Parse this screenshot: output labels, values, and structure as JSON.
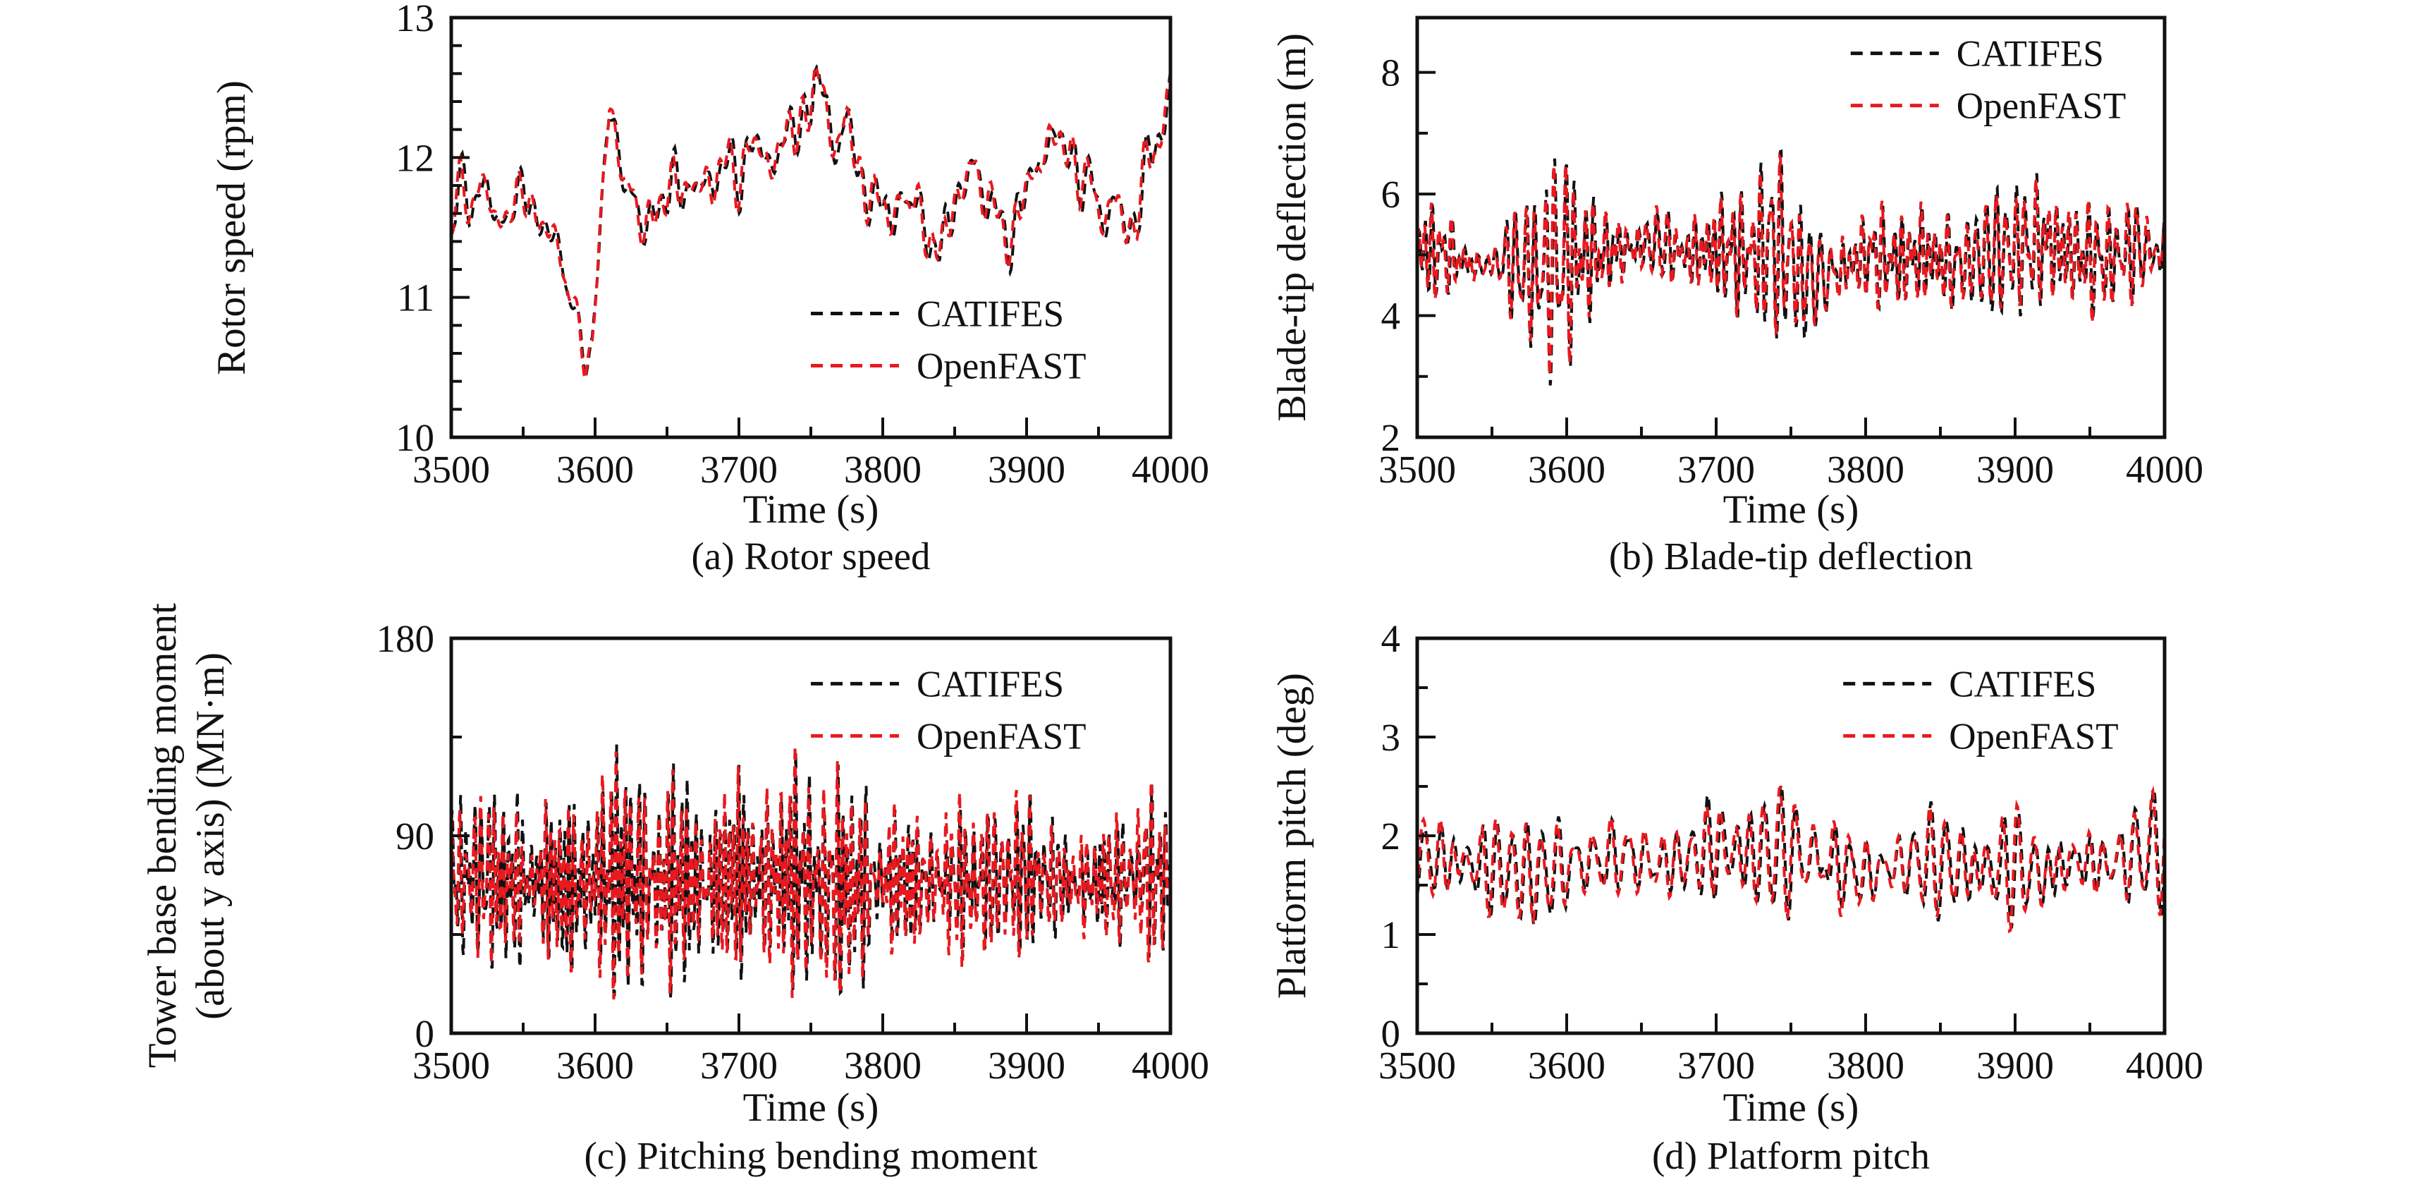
{
  "figure": {
    "background": "#ffffff",
    "text_color": "#111111",
    "axis_color": "#111111",
    "accent_red": "#e8191f",
    "accent_black": "#111111"
  },
  "chart_data": [
    {
      "id": "a",
      "type": "line",
      "caption": "(a) Rotor speed",
      "xlabel": "Time (s)",
      "ylabel_lines": [
        "Rotor speed (rpm)"
      ],
      "xlim": [
        3500,
        4000
      ],
      "ylim": [
        10,
        13
      ],
      "x_major_ticks": [
        3500,
        3600,
        3700,
        3800,
        3900,
        4000
      ],
      "x_minor_step": 50,
      "y_major_ticks": [
        10,
        11,
        12,
        13
      ],
      "y_minor_step": 0.2,
      "grid": false,
      "legend": {
        "position": "bottom-right",
        "x": 0.5,
        "y": 0.705,
        "items": [
          {
            "label": "CATIFES",
            "color": "#111111",
            "dash": "dashed"
          },
          {
            "label": "OpenFAST",
            "color": "#e8191f",
            "dash": "dashed"
          }
        ]
      },
      "signal": {
        "units": "rpm",
        "trend": [
          [
            3500,
            11.5
          ],
          [
            3510,
            11.8
          ],
          [
            3520,
            11.75
          ],
          [
            3530,
            11.6
          ],
          [
            3540,
            11.6
          ],
          [
            3550,
            11.75
          ],
          [
            3560,
            11.6
          ],
          [
            3570,
            11.4
          ],
          [
            3580,
            11.2
          ],
          [
            3588,
            10.8
          ],
          [
            3593,
            10.45
          ],
          [
            3598,
            10.7
          ],
          [
            3604,
            11.6
          ],
          [
            3610,
            12.35
          ],
          [
            3615,
            12.1
          ],
          [
            3625,
            11.7
          ],
          [
            3635,
            11.5
          ],
          [
            3645,
            11.65
          ],
          [
            3655,
            11.85
          ],
          [
            3665,
            11.75
          ],
          [
            3675,
            11.8
          ],
          [
            3685,
            11.9
          ],
          [
            3695,
            11.9
          ],
          [
            3705,
            12.0
          ],
          [
            3715,
            12.05
          ],
          [
            3725,
            12.0
          ],
          [
            3735,
            12.15
          ],
          [
            3745,
            12.3
          ],
          [
            3753,
            12.55
          ],
          [
            3760,
            12.3
          ],
          [
            3770,
            12.2
          ],
          [
            3780,
            12.05
          ],
          [
            3790,
            11.75
          ],
          [
            3800,
            11.6
          ],
          [
            3810,
            11.65
          ],
          [
            3820,
            11.7
          ],
          [
            3830,
            11.5
          ],
          [
            3840,
            11.3
          ],
          [
            3850,
            11.7
          ],
          [
            3860,
            11.9
          ],
          [
            3870,
            11.8
          ],
          [
            3880,
            11.55
          ],
          [
            3890,
            11.4
          ],
          [
            3900,
            11.8
          ],
          [
            3910,
            12.0
          ],
          [
            3920,
            12.15
          ],
          [
            3930,
            12.05
          ],
          [
            3940,
            11.8
          ],
          [
            3950,
            11.7
          ],
          [
            3960,
            11.6
          ],
          [
            3970,
            11.5
          ],
          [
            3980,
            11.75
          ],
          [
            3990,
            12.1
          ],
          [
            4000,
            12.5
          ]
        ],
        "amplitude": [
          [
            3500,
            0.24
          ],
          [
            3580,
            0.18
          ],
          [
            3592,
            0.1
          ],
          [
            3604,
            0.14
          ],
          [
            3620,
            0.22
          ],
          [
            3650,
            0.25
          ],
          [
            3750,
            0.27
          ],
          [
            3800,
            0.24
          ],
          [
            3900,
            0.25
          ],
          [
            4000,
            0.26
          ]
        ],
        "period_range": [
          6,
          26
        ],
        "components": 6,
        "dt": 0.7,
        "seed": 41,
        "seed2": 97,
        "shift": 1.2
      }
    },
    {
      "id": "b",
      "type": "line",
      "caption": "(b) Blade-tip deflection",
      "xlabel": "Time (s)",
      "ylabel_lines": [
        "Blade-tip deflection (m)"
      ],
      "xlim": [
        3500,
        4000
      ],
      "ylim": [
        2,
        8.9
      ],
      "x_major_ticks": [
        3500,
        3600,
        3700,
        3800,
        3900,
        4000
      ],
      "x_minor_step": 50,
      "y_major_ticks": [
        2,
        4,
        6,
        8
      ],
      "y_minor_step": 1,
      "grid": false,
      "legend": {
        "position": "top-right",
        "x": 0.58,
        "y": 0.085,
        "items": [
          {
            "label": "CATIFES",
            "color": "#111111",
            "dash": "dashed"
          },
          {
            "label": "OpenFAST",
            "color": "#e8191f",
            "dash": "dashed"
          }
        ]
      },
      "signal": {
        "units": "m",
        "trend": [
          [
            3500,
            5.1
          ],
          [
            3520,
            5.0
          ],
          [
            3540,
            4.8
          ],
          [
            3560,
            4.9
          ],
          [
            3580,
            4.7
          ],
          [
            3600,
            4.9
          ],
          [
            3620,
            5.0
          ],
          [
            3640,
            5.1
          ],
          [
            3660,
            5.2
          ],
          [
            3680,
            5.0
          ],
          [
            3700,
            5.1
          ],
          [
            3720,
            5.0
          ],
          [
            3740,
            5.2
          ],
          [
            3760,
            4.6
          ],
          [
            3780,
            4.7
          ],
          [
            3800,
            5.0
          ],
          [
            3820,
            4.9
          ],
          [
            3840,
            5.0
          ],
          [
            3860,
            4.8
          ],
          [
            3880,
            5.0
          ],
          [
            3900,
            5.1
          ],
          [
            3920,
            5.2
          ],
          [
            3940,
            5.0
          ],
          [
            3960,
            4.9
          ],
          [
            3980,
            5.1
          ],
          [
            4000,
            5.0
          ]
        ],
        "amplitude": [
          [
            3500,
            1.1
          ],
          [
            3520,
            0.9
          ],
          [
            3540,
            0.8
          ],
          [
            3560,
            1.0
          ],
          [
            3580,
            1.2
          ],
          [
            3600,
            1.5
          ],
          [
            3620,
            1.0
          ],
          [
            3640,
            0.9
          ],
          [
            3660,
            1.0
          ],
          [
            3680,
            0.9
          ],
          [
            3700,
            1.1
          ],
          [
            3720,
            0.9
          ],
          [
            3740,
            1.3
          ],
          [
            3760,
            1.5
          ],
          [
            3780,
            1.2
          ],
          [
            3800,
            0.9
          ],
          [
            3820,
            0.8
          ],
          [
            3840,
            1.0
          ],
          [
            3860,
            1.1
          ],
          [
            3880,
            1.0
          ],
          [
            3900,
            1.2
          ],
          [
            3920,
            1.1
          ],
          [
            3940,
            1.0
          ],
          [
            3960,
            0.9
          ],
          [
            3980,
            1.2
          ],
          [
            4000,
            1.4
          ]
        ],
        "period_range": [
          3.2,
          9
        ],
        "components": 6,
        "dt": 0.5,
        "seed": 12,
        "seed2": 55,
        "shift": 0.5
      }
    },
    {
      "id": "c",
      "type": "line",
      "caption": "(c) Pitching bending moment",
      "xlabel": "Time (s)",
      "ylabel_lines": [
        "Tower base bending moment",
        "(about y axis) (MN·m)"
      ],
      "xlim": [
        3500,
        4000
      ],
      "ylim": [
        0,
        180
      ],
      "x_major_ticks": [
        3500,
        3600,
        3700,
        3800,
        3900,
        4000
      ],
      "x_minor_step": 50,
      "y_major_ticks": [
        0,
        90,
        180
      ],
      "y_minor_step": 45,
      "grid": false,
      "legend": {
        "position": "top-right",
        "x": 0.5,
        "y": 0.115,
        "items": [
          {
            "label": "CATIFES",
            "color": "#111111",
            "dash": "dashed"
          },
          {
            "label": "OpenFAST",
            "color": "#e8191f",
            "dash": "dashed"
          }
        ]
      },
      "signal": {
        "units": "MN·m",
        "trend": [
          [
            3500,
            70
          ],
          [
            3520,
            72
          ],
          [
            3540,
            68
          ],
          [
            3560,
            70
          ],
          [
            3580,
            66
          ],
          [
            3600,
            70
          ],
          [
            3620,
            72
          ],
          [
            3640,
            68
          ],
          [
            3660,
            70
          ],
          [
            3680,
            68
          ],
          [
            3700,
            72
          ],
          [
            3720,
            70
          ],
          [
            3740,
            72
          ],
          [
            3760,
            66
          ],
          [
            3780,
            67
          ],
          [
            3800,
            70
          ],
          [
            3820,
            68
          ],
          [
            3840,
            70
          ],
          [
            3860,
            68
          ],
          [
            3880,
            70
          ],
          [
            3900,
            72
          ],
          [
            3920,
            70
          ],
          [
            3940,
            68
          ],
          [
            3960,
            70
          ],
          [
            3980,
            72
          ],
          [
            4000,
            70
          ]
        ],
        "amplitude": [
          [
            3500,
            40
          ],
          [
            3520,
            46
          ],
          [
            3540,
            36
          ],
          [
            3560,
            42
          ],
          [
            3580,
            38
          ],
          [
            3600,
            44
          ],
          [
            3620,
            47
          ],
          [
            3640,
            38
          ],
          [
            3660,
            42
          ],
          [
            3680,
            38
          ],
          [
            3700,
            44
          ],
          [
            3720,
            40
          ],
          [
            3740,
            44
          ],
          [
            3760,
            50
          ],
          [
            3780,
            46
          ],
          [
            3800,
            42
          ],
          [
            3820,
            38
          ],
          [
            3840,
            42
          ],
          [
            3860,
            38
          ],
          [
            3880,
            42
          ],
          [
            3900,
            46
          ],
          [
            3920,
            42
          ],
          [
            3940,
            38
          ],
          [
            3960,
            42
          ],
          [
            3980,
            44
          ],
          [
            4000,
            42
          ]
        ],
        "period_range": [
          3.0,
          8
        ],
        "components": 6,
        "dt": 0.5,
        "seed": 23,
        "seed2": 77,
        "shift": 0.5
      }
    },
    {
      "id": "d",
      "type": "line",
      "caption": "(d) Platform pitch",
      "xlabel": "Time (s)",
      "ylabel_lines": [
        "Platform pitch (deg)"
      ],
      "xlim": [
        3500,
        4000
      ],
      "ylim": [
        0,
        4
      ],
      "x_major_ticks": [
        3500,
        3600,
        3700,
        3800,
        3900,
        4000
      ],
      "x_minor_step": 50,
      "y_major_ticks": [
        0,
        1,
        2,
        3,
        4
      ],
      "y_minor_step": 0.5,
      "grid": false,
      "legend": {
        "position": "top-right",
        "x": 0.57,
        "y": 0.115,
        "items": [
          {
            "label": "CATIFES",
            "color": "#111111",
            "dash": "dashed"
          },
          {
            "label": "OpenFAST",
            "color": "#e8191f",
            "dash": "dashed"
          }
        ]
      },
      "signal": {
        "units": "deg",
        "trend": [
          [
            3500,
            1.8
          ],
          [
            3520,
            1.75
          ],
          [
            3540,
            1.7
          ],
          [
            3560,
            1.65
          ],
          [
            3580,
            1.6
          ],
          [
            3600,
            1.7
          ],
          [
            3620,
            1.75
          ],
          [
            3640,
            1.8
          ],
          [
            3660,
            1.7
          ],
          [
            3680,
            1.75
          ],
          [
            3700,
            1.9
          ],
          [
            3720,
            1.8
          ],
          [
            3740,
            1.85
          ],
          [
            3760,
            1.8
          ],
          [
            3780,
            1.7
          ],
          [
            3800,
            1.6
          ],
          [
            3820,
            1.7
          ],
          [
            3840,
            1.75
          ],
          [
            3860,
            1.7
          ],
          [
            3880,
            1.65
          ],
          [
            3900,
            1.7
          ],
          [
            3920,
            1.6
          ],
          [
            3940,
            1.75
          ],
          [
            3960,
            1.7
          ],
          [
            3980,
            1.8
          ],
          [
            4000,
            1.9
          ]
        ],
        "amplitude": [
          [
            3500,
            0.6
          ],
          [
            3520,
            0.55
          ],
          [
            3540,
            0.5
          ],
          [
            3560,
            0.55
          ],
          [
            3580,
            0.5
          ],
          [
            3600,
            0.55
          ],
          [
            3620,
            0.5
          ],
          [
            3640,
            0.55
          ],
          [
            3660,
            0.5
          ],
          [
            3680,
            0.55
          ],
          [
            3700,
            0.6
          ],
          [
            3720,
            0.55
          ],
          [
            3740,
            0.6
          ],
          [
            3760,
            0.65
          ],
          [
            3780,
            0.7
          ],
          [
            3800,
            0.55
          ],
          [
            3820,
            0.5
          ],
          [
            3840,
            0.55
          ],
          [
            3860,
            0.5
          ],
          [
            3880,
            0.55
          ],
          [
            3900,
            0.6
          ],
          [
            3920,
            0.65
          ],
          [
            3940,
            0.6
          ],
          [
            3960,
            0.55
          ],
          [
            3980,
            0.65
          ],
          [
            4000,
            0.6
          ]
        ],
        "period_range": [
          7,
          18
        ],
        "components": 6,
        "dt": 0.7,
        "seed": 34,
        "seed2": 88,
        "shift": 1.0
      }
    }
  ]
}
